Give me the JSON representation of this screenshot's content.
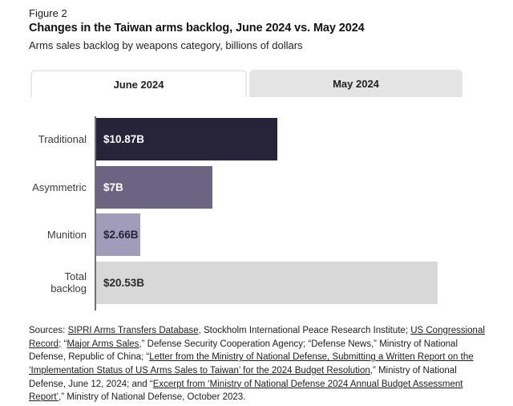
{
  "header": {
    "figure_label": "Figure 2",
    "title": "Changes in the Taiwan arms backlog, June 2024 vs. May 2024",
    "subtitle": "Arms sales backlog by weapons category, billions of dollars"
  },
  "tabs": [
    {
      "label": "June 2024",
      "active": true
    },
    {
      "label": "May 2024",
      "active": false
    }
  ],
  "chart_data": {
    "type": "bar",
    "orientation": "horizontal",
    "title": "Changes in the Taiwan arms backlog, June 2024 vs. May 2024",
    "subtitle": "Arms sales backlog by weapons category, billions of dollars",
    "unit": "billions of dollars",
    "categories": [
      "Traditional",
      "Asymmetric",
      "Munition",
      "Total backlog"
    ],
    "values": [
      10.87,
      7,
      2.66,
      20.53
    ],
    "value_labels": [
      "$10.87B",
      "$7B",
      "$2.66B",
      "$20.53B"
    ],
    "bar_colors": [
      "#272338",
      "#6b6582",
      "#a19cba",
      "#d8d8d8"
    ],
    "value_label_colors": [
      "#ffffff",
      "#ffffff",
      "#272338",
      "#2b2b2b"
    ],
    "xlim": [
      0,
      23.4
    ],
    "grid": false,
    "axis_color": "#707070",
    "legend_position": "none"
  },
  "sources": {
    "segments": [
      {
        "text": "Sources: ",
        "link": false
      },
      {
        "text": "SIPRI Arms Transfers Database",
        "link": true
      },
      {
        "text": ", Stockholm International Peace Research Institute; ",
        "link": false
      },
      {
        "text": "US Congressional Record;",
        "link": true
      },
      {
        "text": " “",
        "link": false
      },
      {
        "text": "Major Arms Sales,",
        "link": true
      },
      {
        "text": "” Defense Security Cooperation Agency; “Defense News,” Ministry of National Defense, Republic of China; “",
        "link": false
      },
      {
        "text": "Letter from the Ministry of National Defense, Submitting a Written Report on the ‘Implementation Status of US Arms Sales to Taiwan’ for the 2024 Budget Resolution",
        "link": true
      },
      {
        "text": ",” Ministry of National Defense, June 12, 2024; and “",
        "link": false
      },
      {
        "text": "Excerpt from ‘Ministry of National Defense 2024 Annual Budget Assessment Report’",
        "link": true
      },
      {
        "text": ",” Ministry of National Defense, October 2023.",
        "link": false
      }
    ]
  }
}
